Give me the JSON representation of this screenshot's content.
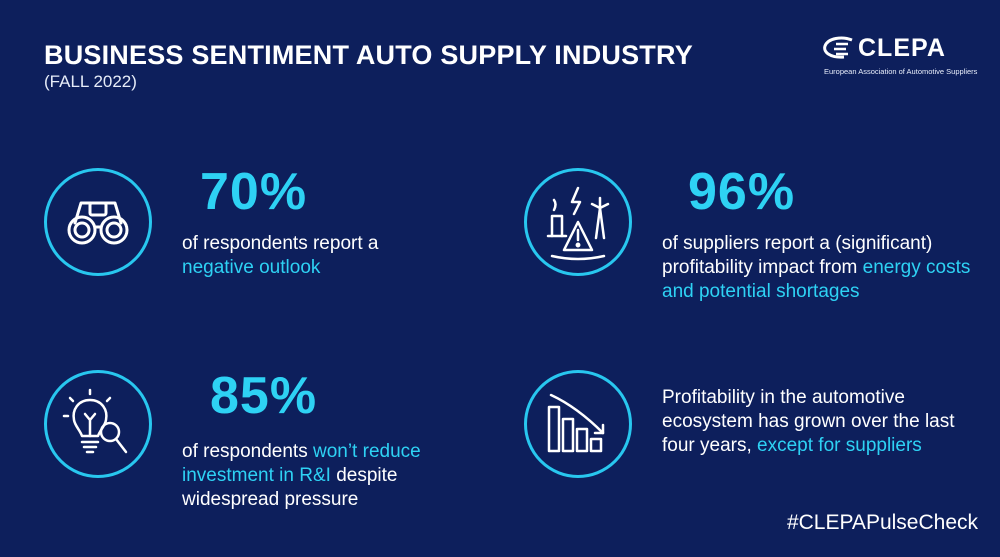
{
  "header": {
    "title": "BUSINESS SENTIMENT AUTO SUPPLY INDUSTRY",
    "subtitle": "(FALL 2022)"
  },
  "logo": {
    "name": "CLEPA",
    "tagline": "European Association of Automotive Suppliers"
  },
  "stats": {
    "outlook": {
      "icon": "binoculars-icon",
      "value": "70%",
      "text_before": "of respondents report a",
      "highlight": "negative outlook",
      "text_after": ""
    },
    "energy": {
      "icon": "energy-warning-icon",
      "value": "96%",
      "text_before": "of suppliers report a (significant) profitability impact from",
      "highlight": "energy costs and potential shortages",
      "text_after": ""
    },
    "investment": {
      "icon": "lightbulb-magnifier-icon",
      "value": "85%",
      "text_before": "of respondents",
      "highlight": "won’t reduce investment in R&I",
      "text_after": "despite widespread pressure"
    },
    "profitability": {
      "icon": "declining-bar-chart-icon",
      "text_before": "Profitability in the automotive ecosystem has grown over the last four years,",
      "highlight": "except for suppliers",
      "text_after": ""
    }
  },
  "footer": {
    "hashtag": "#CLEPAPulseCheck"
  },
  "colors": {
    "background": "#0d1f5c",
    "accent": "#2ed2f4",
    "circle": "#28c7ef",
    "text": "#ffffff"
  }
}
